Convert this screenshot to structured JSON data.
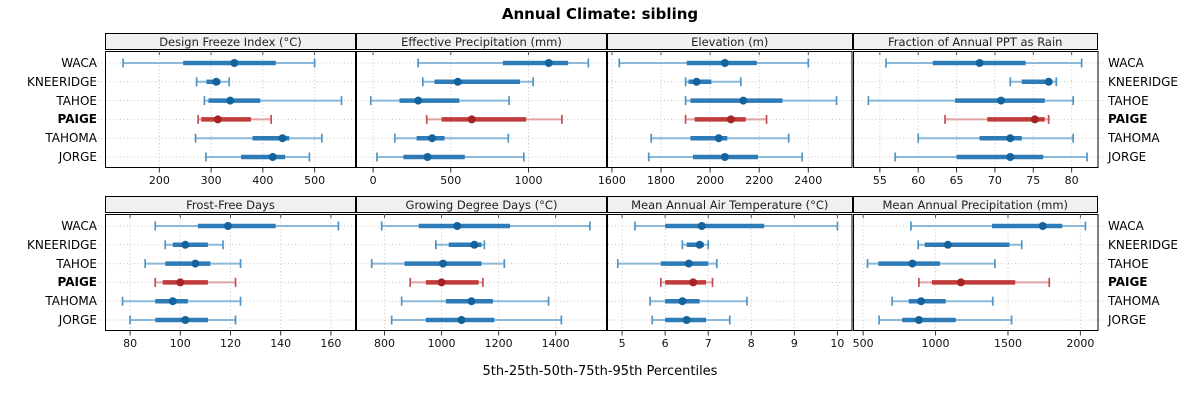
{
  "title": "Annual Climate: sibling",
  "caption": "5th-25th-50th-75th-95th Percentiles",
  "percentile_labels": [
    "5th",
    "25th",
    "50th",
    "75th",
    "95th"
  ],
  "colors": {
    "normal": {
      "whisker": "#8cb8da",
      "cap": "#4f94c4",
      "bar": "#2d7cb8",
      "dot": "#14639c"
    },
    "highlight": {
      "whisker": "#e0a4a4",
      "cap": "#c24f4f",
      "bar": "#c23b3b",
      "dot": "#a62424"
    },
    "grid": "#c8c8c8",
    "strip_bg": "#f0f0f0",
    "border": "#000000"
  },
  "chart_data": {
    "type": "dotplot",
    "note": "each station row shows [5th,25th,50th,75th,95th] percentiles; dot = median",
    "rows_order": [
      "WACA",
      "KNEERIDGE",
      "TAHOE",
      "PAIGE",
      "TAHOMA",
      "JORGE"
    ],
    "highlight_row": "PAIGE",
    "panels": [
      {
        "title": "Design Freeze Index (°C)",
        "row": 0,
        "col": 0,
        "xlim": [
          95,
          580
        ],
        "ticks": [
          200,
          300,
          400,
          500
        ],
        "values": {
          "WACA": [
            130,
            246,
            345,
            425,
            500
          ],
          "KNEERIDGE": [
            272,
            291,
            310,
            318,
            335
          ],
          "TAHOE": [
            287,
            295,
            337,
            395,
            552
          ],
          "PAIGE": [
            275,
            281,
            313,
            377,
            416
          ],
          "TAHOMA": [
            270,
            380,
            438,
            451,
            514
          ],
          "JORGE": [
            290,
            358,
            419,
            443,
            490
          ]
        }
      },
      {
        "title": "Effective Precipitation (mm)",
        "row": 0,
        "col": 1,
        "xlim": [
          -110,
          1505
        ],
        "ticks": [
          0,
          500,
          1000
        ],
        "values": {
          "WACA": [
            290,
            835,
            1130,
            1255,
            1385
          ],
          "KNEERIDGE": [
            320,
            395,
            545,
            945,
            1030
          ],
          "TAHOE": [
            -15,
            170,
            290,
            555,
            875
          ],
          "PAIGE": [
            345,
            440,
            635,
            985,
            1215
          ],
          "TAHOMA": [
            140,
            280,
            380,
            460,
            870
          ],
          "JORGE": [
            25,
            195,
            350,
            590,
            970
          ]
        }
      },
      {
        "title": "Elevation (m)",
        "row": 0,
        "col": 2,
        "xlim": [
          1580,
          2580
        ],
        "ticks": [
          1600,
          1800,
          2000,
          2200,
          2400
        ],
        "values": {
          "WACA": [
            1630,
            1905,
            2060,
            2190,
            2400
          ],
          "KNEERIDGE": [
            1900,
            1912,
            1945,
            2005,
            2125
          ],
          "TAHOE": [
            1900,
            1920,
            2135,
            2295,
            2515
          ],
          "PAIGE": [
            1900,
            1937,
            2085,
            2145,
            2230
          ],
          "TAHOMA": [
            1760,
            1920,
            2035,
            2070,
            2320
          ],
          "JORGE": [
            1750,
            1930,
            2060,
            2195,
            2375
          ]
        }
      },
      {
        "title": "Fraction of Annual PPT as Rain",
        "row": 0,
        "col": 3,
        "xlim": [
          51.5,
          83.5
        ],
        "ticks": [
          55,
          60,
          65,
          70,
          75,
          80
        ],
        "values": {
          "WACA": [
            55.8,
            61.9,
            68.0,
            74.0,
            81.3
          ],
          "KNEERIDGE": [
            72.0,
            73.5,
            77.0,
            77.5,
            78.0
          ],
          "TAHOE": [
            53.5,
            64.8,
            70.8,
            76.5,
            80.2
          ],
          "PAIGE": [
            63.5,
            69.0,
            75.2,
            76.5,
            77.0
          ],
          "TAHOMA": [
            60.0,
            68.0,
            72.0,
            73.5,
            80.2
          ],
          "JORGE": [
            57.0,
            65.0,
            72.0,
            76.3,
            82.0
          ]
        }
      },
      {
        "title": "Frost-Free Days",
        "row": 1,
        "col": 0,
        "xlim": [
          70,
          170
        ],
        "ticks": [
          80,
          100,
          120,
          140,
          160
        ],
        "values": {
          "WACA": [
            90,
            107,
            119,
            138,
            163
          ],
          "KNEERIDGE": [
            94,
            97,
            102,
            111,
            117
          ],
          "TAHOE": [
            86,
            94,
            106,
            112,
            124
          ],
          "PAIGE": [
            90,
            93,
            100,
            111,
            122
          ],
          "TAHOMA": [
            77,
            90,
            97,
            103,
            124
          ],
          "JORGE": [
            80,
            90,
            102,
            111,
            122
          ]
        }
      },
      {
        "title": "Growing Degree Days (°C)",
        "row": 1,
        "col": 1,
        "xlim": [
          700,
          1580
        ],
        "ticks": [
          800,
          1000,
          1200,
          1400
        ],
        "values": {
          "WACA": [
            790,
            920,
            1055,
            1240,
            1520
          ],
          "KNEERIDGE": [
            980,
            1025,
            1115,
            1140,
            1150
          ],
          "TAHOE": [
            755,
            870,
            1005,
            1140,
            1220
          ],
          "PAIGE": [
            890,
            945,
            1000,
            1130,
            1145
          ],
          "TAHOMA": [
            860,
            1015,
            1105,
            1180,
            1375
          ],
          "JORGE": [
            825,
            945,
            1070,
            1185,
            1420
          ]
        }
      },
      {
        "title": "Mean Annual Air Temperature (°C)",
        "row": 1,
        "col": 2,
        "xlim": [
          4.65,
          10.35
        ],
        "ticks": [
          5,
          6,
          7,
          8,
          9,
          10
        ],
        "values": {
          "WACA": [
            5.3,
            6.0,
            6.85,
            8.3,
            10.0
          ],
          "KNEERIDGE": [
            6.4,
            6.5,
            6.8,
            6.9,
            7.0
          ],
          "TAHOE": [
            4.9,
            5.9,
            6.55,
            7.0,
            7.2
          ],
          "PAIGE": [
            5.9,
            6.0,
            6.65,
            6.95,
            7.1
          ],
          "TAHOMA": [
            5.65,
            6.0,
            6.4,
            6.8,
            7.9
          ],
          "JORGE": [
            5.7,
            6.0,
            6.5,
            6.95,
            7.5
          ]
        }
      },
      {
        "title": "Mean Annual Precipitation (mm)",
        "row": 1,
        "col": 3,
        "xlim": [
          430,
          2125
        ],
        "ticks": [
          500,
          1000,
          1500,
          2000
        ],
        "values": {
          "WACA": [
            830,
            1390,
            1740,
            1875,
            2035
          ],
          "KNEERIDGE": [
            880,
            925,
            1085,
            1510,
            1595
          ],
          "TAHOE": [
            530,
            605,
            840,
            1030,
            1410
          ],
          "PAIGE": [
            885,
            975,
            1175,
            1550,
            1785
          ],
          "TAHOMA": [
            700,
            815,
            900,
            1070,
            1395
          ],
          "JORGE": [
            610,
            770,
            885,
            1140,
            1525
          ]
        }
      }
    ]
  }
}
